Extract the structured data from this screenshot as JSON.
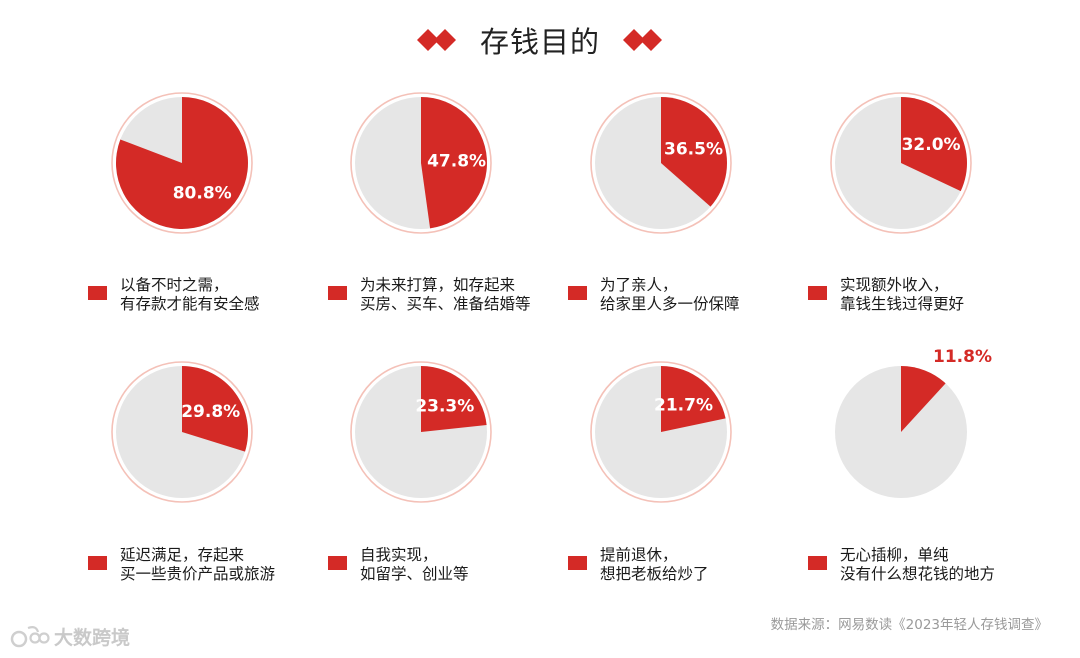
{
  "title": "存钱目的",
  "source": "数据来源：网易数读《2023年轻人存钱调查》",
  "watermark": "大数跨境",
  "colors": {
    "accent": "#d42a26",
    "rest": "#e6e6e6",
    "ring": "#f4c1b8",
    "label_inside": "#ffffff",
    "label_outside": "#d42a26"
  },
  "chart_data": {
    "type": "pie",
    "slices_per_chart": [
      "selected",
      "other"
    ],
    "charts": [
      {
        "value": 80.8,
        "label": "80.8%",
        "legend": [
          "以备不时之需，",
          "有存款才能有安全感"
        ]
      },
      {
        "value": 47.8,
        "label": "47.8%",
        "legend": [
          "为未来打算，如存起来",
          "买房、买车、准备结婚等"
        ]
      },
      {
        "value": 36.5,
        "label": "36.5%",
        "legend": [
          "为了亲人，",
          "给家里人多一份保障"
        ]
      },
      {
        "value": 32.0,
        "label": "32.0%",
        "legend": [
          "实现额外收入，",
          "靠钱生钱过得更好"
        ]
      },
      {
        "value": 29.8,
        "label": "29.8%",
        "legend": [
          "延迟满足，存起来",
          "买一些贵价产品或旅游"
        ]
      },
      {
        "value": 23.3,
        "label": "23.3%",
        "legend": [
          "自我实现，",
          "如留学、创业等"
        ]
      },
      {
        "value": 21.7,
        "label": "21.7%",
        "legend": [
          "提前退休，",
          "想把老板给炒了"
        ]
      },
      {
        "value": 11.8,
        "label": "11.8%",
        "legend": [
          "无心插柳，单纯",
          "没有什么想花钱的地方"
        ]
      }
    ]
  }
}
